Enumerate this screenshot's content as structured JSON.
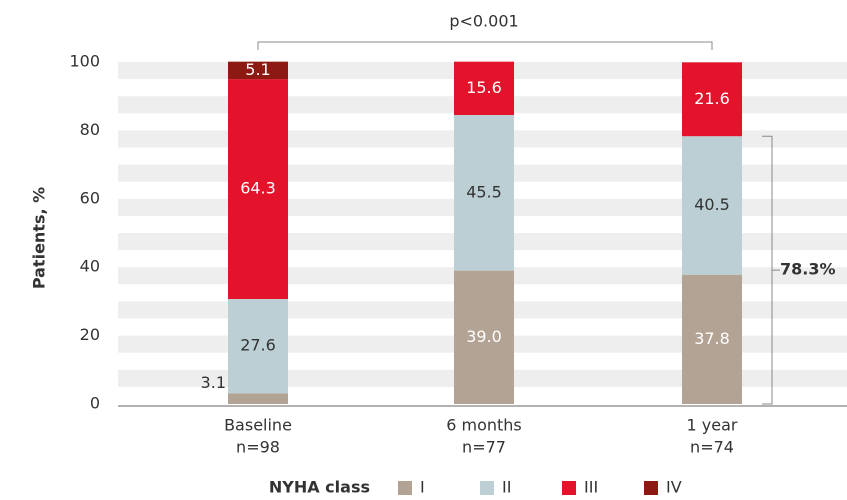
{
  "chart_data": {
    "type": "stacked_bar",
    "y_label": "Patients, %",
    "categories": [
      "Baseline",
      "6 months",
      "1 year"
    ],
    "n_labels": [
      "n=98",
      "n=77",
      "n=74"
    ],
    "series": [
      {
        "name": "I",
        "color": "#b3a394",
        "label_color": "#ffffff",
        "values": [
          3.1,
          39.0,
          37.8
        ],
        "value_labels": [
          "3.1",
          "39.0",
          "37.8"
        ]
      },
      {
        "name": "II",
        "color": "#bccfd5",
        "label_color": "#333333",
        "values": [
          27.6,
          45.5,
          40.5
        ],
        "value_labels": [
          "27.6",
          "45.5",
          "40.5"
        ]
      },
      {
        "name": "III",
        "color": "#e2132b",
        "label_color": "#ffffff",
        "values": [
          64.3,
          15.6,
          21.6
        ],
        "value_labels": [
          "64.3",
          "15.6",
          "21.6"
        ]
      },
      {
        "name": "IV",
        "color": "#8c1a12",
        "label_color": "#ffffff",
        "values": [
          5.1,
          null,
          null
        ],
        "value_labels": [
          "5.1",
          null,
          null
        ]
      }
    ],
    "ylim": [
      0,
      100
    ],
    "yticks": [
      0,
      20,
      40,
      60,
      80,
      100
    ],
    "legend_title": "NYHA class",
    "p_annotation": "p<0.001",
    "bracket_annotation": {
      "text": "78.3%",
      "value": 78.3
    }
  }
}
